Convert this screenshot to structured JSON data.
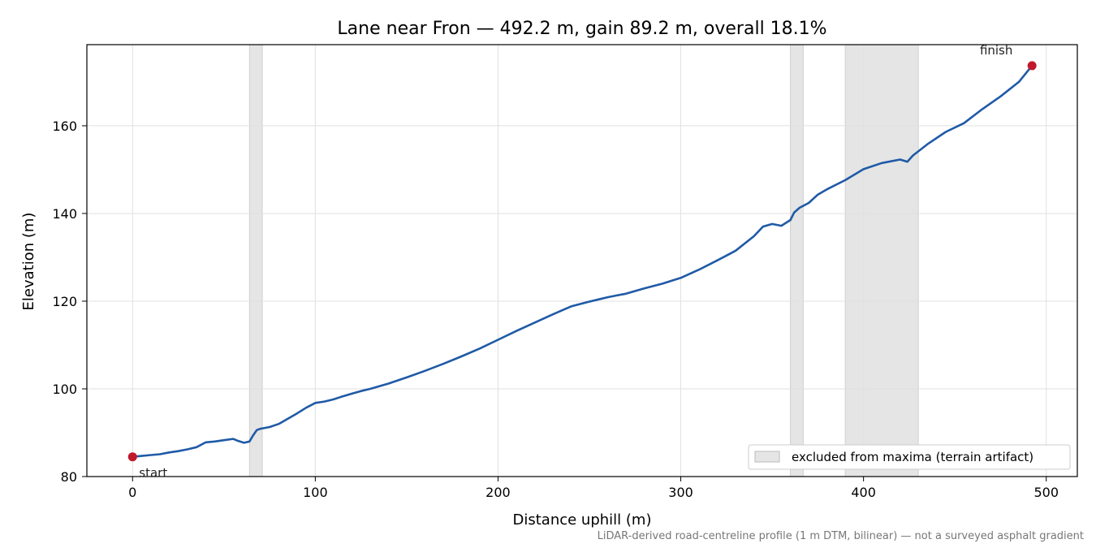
{
  "chart_data": {
    "type": "line",
    "title": "Lane near Fron — 492.2 m, gain 89.2 m, overall 18.1%",
    "xlabel": "Distance uphill (m)",
    "ylabel": "Elevation (m)",
    "xlim": [
      -25,
      517
    ],
    "ylim": [
      80,
      178.5
    ],
    "x_ticks": [
      0,
      100,
      200,
      300,
      400,
      500
    ],
    "y_ticks": [
      80,
      100,
      120,
      140,
      160
    ],
    "grid": true,
    "line_color": "#1f5aa6",
    "marker_color": "#c0192c",
    "band_color": "#e5e5e5",
    "series": [
      {
        "x": [
          0,
          5,
          10,
          15,
          20,
          25,
          30,
          35,
          40,
          45,
          50,
          55,
          58,
          61,
          64,
          66,
          68,
          70,
          75,
          80,
          85,
          90,
          95,
          100,
          105,
          110,
          115,
          120,
          125,
          130,
          140,
          150,
          160,
          170,
          180,
          190,
          200,
          210,
          220,
          230,
          240,
          250,
          255,
          260,
          265,
          270,
          280,
          290,
          300,
          310,
          320,
          330,
          340,
          345,
          350,
          355,
          360,
          362,
          365,
          370,
          375,
          380,
          390,
          400,
          410,
          420,
          424,
          427,
          435,
          445,
          455,
          465,
          475,
          485,
          492.2
        ],
        "y": [
          84.5,
          84.7,
          84.9,
          85.1,
          85.5,
          85.8,
          86.2,
          86.7,
          87.8,
          88.0,
          88.3,
          88.6,
          88.1,
          87.7,
          88.0,
          89.4,
          90.6,
          90.9,
          91.3,
          92.0,
          93.2,
          94.4,
          95.7,
          96.8,
          97.1,
          97.6,
          98.3,
          98.9,
          99.5,
          100.0,
          101.2,
          102.6,
          104.1,
          105.7,
          107.4,
          109.2,
          111.2,
          113.2,
          115.1,
          117.0,
          118.8,
          119.9,
          120.4,
          120.9,
          121.3,
          121.7,
          122.9,
          124.0,
          125.3,
          127.2,
          129.3,
          131.5,
          134.8,
          137.0,
          137.6,
          137.2,
          138.5,
          140.2,
          141.3,
          142.4,
          144.3,
          145.5,
          147.6,
          150.1,
          151.5,
          152.3,
          151.8,
          153.2,
          155.8,
          158.6,
          160.6,
          163.8,
          166.7,
          170.0,
          173.7
        ]
      }
    ],
    "excluded_bands": [
      [
        64,
        71
      ],
      [
        360,
        367
      ],
      [
        390,
        430
      ]
    ],
    "annotations": {
      "start": {
        "label": "start",
        "x": 0,
        "y": 84.5
      },
      "finish": {
        "label": "finish",
        "x": 492.2,
        "y": 173.7
      }
    },
    "legend": {
      "label": "excluded from maxima (terrain artifact)",
      "position": "lower-right"
    },
    "footnote": "LiDAR-derived road-centreline profile (1 m DTM, bilinear) — not a surveyed asphalt gradient"
  }
}
